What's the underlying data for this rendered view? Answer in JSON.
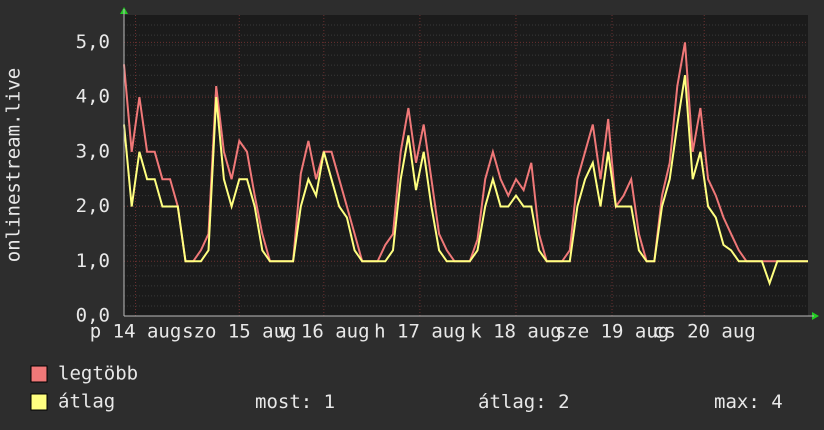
{
  "chart_data": {
    "type": "line",
    "y_label": "onlinestream.live",
    "x": [
      0,
      2,
      4,
      6,
      8,
      10,
      12,
      14,
      16,
      18,
      20,
      22,
      24,
      26,
      28,
      30,
      32,
      34,
      36,
      38,
      40,
      42,
      44,
      46,
      48,
      50,
      52,
      54,
      56,
      58,
      60,
      62,
      64,
      66,
      68,
      70,
      72,
      74,
      76,
      78,
      80,
      82,
      84,
      86,
      88,
      90,
      92,
      94,
      96,
      98,
      100,
      102,
      104,
      106,
      108,
      110,
      112,
      114,
      116,
      118,
      120,
      122,
      124,
      126,
      128,
      130,
      132,
      134,
      136,
      138,
      140,
      142,
      144,
      146,
      148,
      150,
      152,
      154,
      156,
      158,
      160,
      162,
      164,
      166,
      168,
      170,
      172,
      174,
      176,
      178
    ],
    "series": [
      {
        "name": "legtöbb",
        "color": "#f07878",
        "values": [
          4.6,
          3,
          4,
          3,
          3,
          2.5,
          2.5,
          2,
          1,
          1,
          1.2,
          1.5,
          4.2,
          3,
          2.5,
          3.2,
          3,
          2.2,
          1.5,
          1,
          1,
          1,
          1,
          2.6,
          3.2,
          2.5,
          3,
          3,
          2.5,
          2,
          1.5,
          1,
          1,
          1,
          1.3,
          1.5,
          3,
          3.8,
          2.8,
          3.5,
          2.5,
          1.5,
          1.2,
          1,
          1,
          1,
          1.4,
          2.5,
          3,
          2.5,
          2.2,
          2.5,
          2.3,
          2.8,
          1.5,
          1,
          1,
          1,
          1.2,
          2.5,
          3,
          3.5,
          2.5,
          3.6,
          2,
          2.2,
          2.5,
          1.5,
          1,
          1,
          2.2,
          2.8,
          4.2,
          5,
          3,
          3.8,
          2.5,
          2.2,
          1.8,
          1.5,
          1.2,
          1,
          1,
          1,
          1,
          1,
          1,
          1,
          1,
          1
        ]
      },
      {
        "name": "átlag",
        "color": "#ffff80",
        "values": [
          3.5,
          2,
          3,
          2.5,
          2.5,
          2,
          2,
          2,
          1,
          1,
          1,
          1.2,
          4,
          2.5,
          2,
          2.5,
          2.5,
          2,
          1.2,
          1,
          1,
          1,
          1,
          2,
          2.5,
          2.2,
          3,
          2.5,
          2,
          1.8,
          1.2,
          1,
          1,
          1,
          1,
          1.2,
          2.5,
          3.3,
          2.3,
          3,
          2,
          1.2,
          1,
          1,
          1,
          1,
          1.2,
          2,
          2.5,
          2,
          2,
          2.2,
          2,
          2,
          1.2,
          1,
          1,
          1,
          1,
          2,
          2.5,
          2.8,
          2,
          3,
          2,
          2,
          2,
          1.2,
          1,
          1,
          2,
          2.5,
          3.5,
          4.4,
          2.5,
          3,
          2,
          1.8,
          1.3,
          1.2,
          1,
          1,
          1,
          1,
          0.6,
          1,
          1,
          1,
          1,
          1
        ]
      }
    ],
    "xlim": [
      0,
      178
    ],
    "ylim": [
      0,
      5.5
    ],
    "xticks": [
      {
        "value": 3,
        "label": "p 14 aug"
      },
      {
        "value": 30,
        "label": "szo 15 aug"
      },
      {
        "value": 52,
        "label": "v 16 aug"
      },
      {
        "value": 77,
        "label": "h 17 aug"
      },
      {
        "value": 102,
        "label": "k 18 aug"
      },
      {
        "value": 127,
        "label": "sze 19 aug"
      },
      {
        "value": 151,
        "label": "cs 20 aug"
      }
    ],
    "yticks": [
      {
        "value": 0,
        "label": "0,0"
      },
      {
        "value": 1,
        "label": "1,0"
      },
      {
        "value": 2,
        "label": "2,0"
      },
      {
        "value": 3,
        "label": "3,0"
      },
      {
        "value": 4,
        "label": "4,0"
      },
      {
        "value": 5,
        "label": "5,0"
      }
    ],
    "grid": true,
    "stats": [
      {
        "label": "most:",
        "value": 1
      },
      {
        "label": "átlag:",
        "value": 2
      },
      {
        "label": "max:",
        "value": 4
      }
    ]
  }
}
